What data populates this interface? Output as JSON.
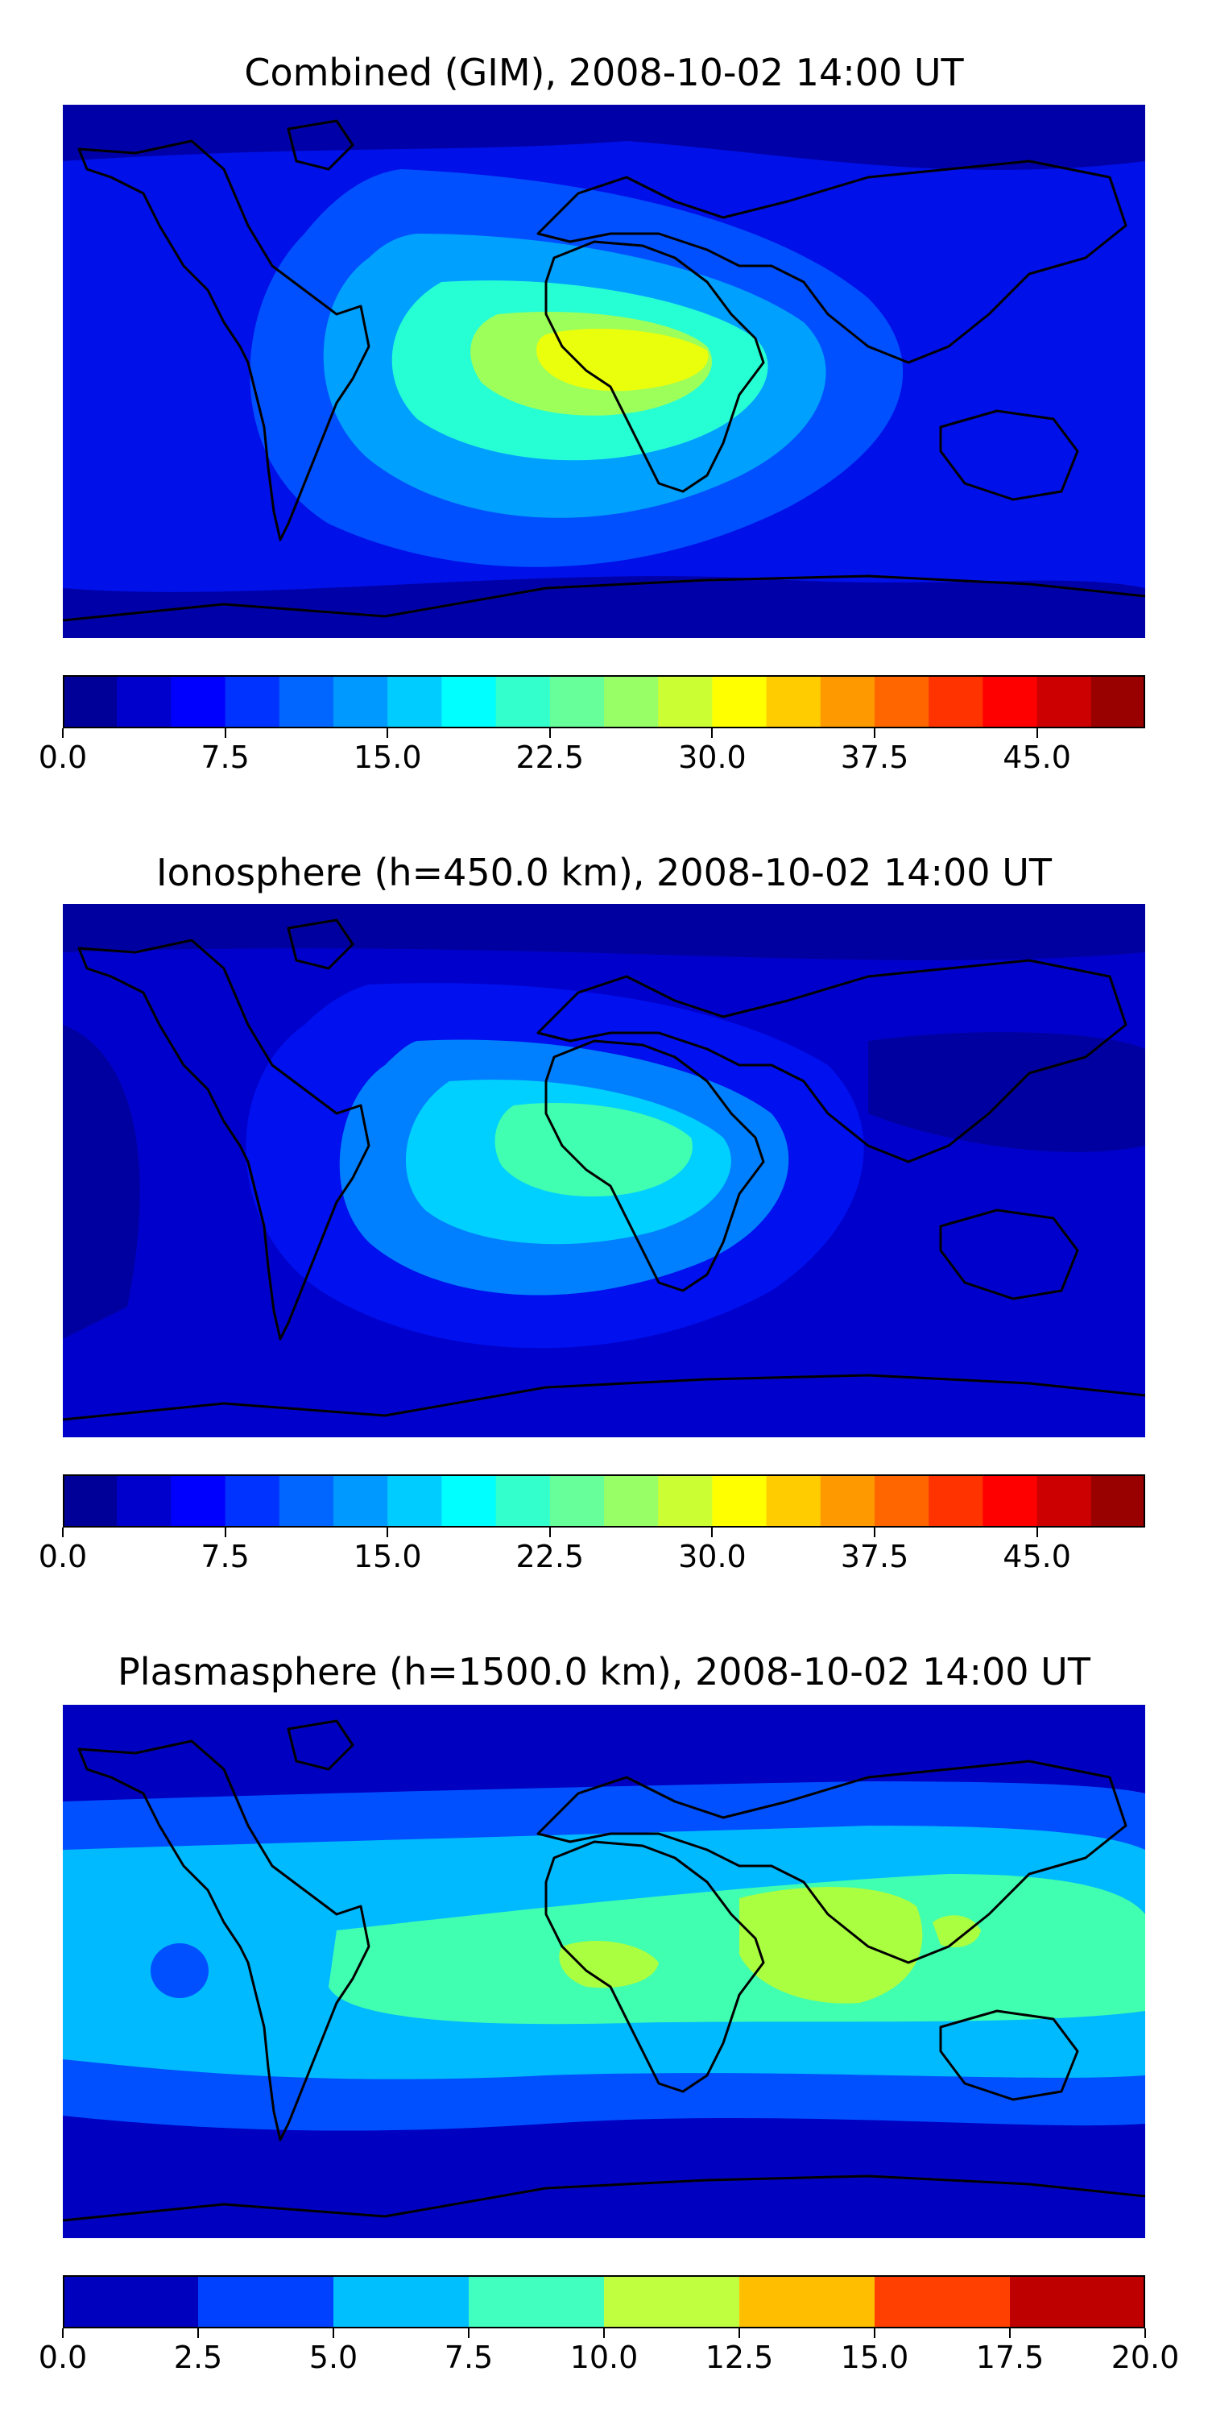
{
  "panels": [
    {
      "title": "Combined (GIM), 2008-10-02 14:00 UT",
      "variant": "combined",
      "colorbar": {
        "vmin": 0.0,
        "vmax": 50.0,
        "levels": 20,
        "ticks": [
          "0.0",
          "7.5",
          "15.0",
          "22.5",
          "30.0",
          "37.5",
          "45.0"
        ],
        "tick_values": [
          0,
          7.5,
          15,
          22.5,
          30,
          37.5,
          45
        ]
      }
    },
    {
      "title": "Ionosphere  (h=450.0 km), 2008-10-02 14:00 UT",
      "variant": "ionosphere",
      "colorbar": {
        "vmin": 0.0,
        "vmax": 50.0,
        "levels": 20,
        "ticks": [
          "0.0",
          "7.5",
          "15.0",
          "22.5",
          "30.0",
          "37.5",
          "45.0"
        ],
        "tick_values": [
          0,
          7.5,
          15,
          22.5,
          30,
          37.5,
          45
        ]
      }
    },
    {
      "title": "Plasmasphere (h=1500.0 km), 2008-10-02 14:00 UT",
      "variant": "plasmasphere",
      "colorbar": {
        "vmin": 0.0,
        "vmax": 20.0,
        "levels": 8,
        "ticks": [
          "0.0",
          "2.5",
          "5.0",
          "7.5",
          "10.0",
          "12.5",
          "15.0",
          "17.5",
          "20.0"
        ],
        "tick_values": [
          0,
          2.5,
          5,
          7.5,
          10,
          12.5,
          15,
          17.5,
          20
        ]
      }
    }
  ],
  "colormap": "jet"
}
